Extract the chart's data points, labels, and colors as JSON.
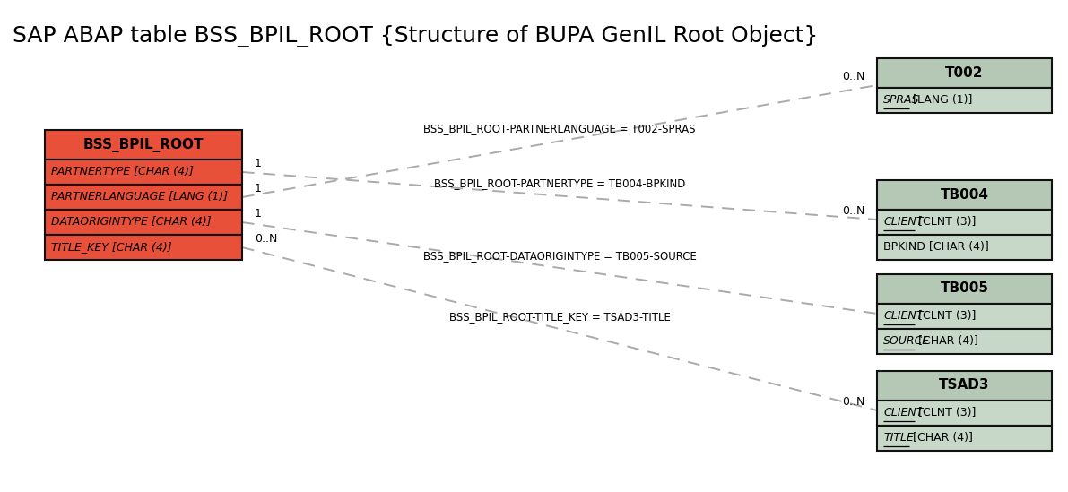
{
  "title": "SAP ABAP table BSS_BPIL_ROOT {Structure of BUPA GenIL Root Object}",
  "title_fontsize": 18,
  "bg_color": "#ffffff",
  "left_table": {
    "name": "BSS_BPIL_ROOT",
    "header_color": "#e8503a",
    "row_color": "#e8503a",
    "border_color": "#111111",
    "fields": [
      "PARTNERTYPE [CHAR (4)]",
      "PARTNERLANGUAGE [LANG (1)]",
      "DATAORIGINTYPE [CHAR (4)]",
      "TITLE_KEY [CHAR (4)]"
    ]
  },
  "right_tables": [
    {
      "name": "T002",
      "header_color": "#b5c8b5",
      "row_color": "#c8d8c8",
      "border_color": "#111111",
      "fields": [
        "SPRAS [LANG (1)]"
      ],
      "underlines": [
        true
      ]
    },
    {
      "name": "TB004",
      "header_color": "#b5c8b5",
      "row_color": "#c8d8c8",
      "border_color": "#111111",
      "fields": [
        "CLIENT [CLNT (3)]",
        "BPKIND [CHAR (4)]"
      ],
      "underlines": [
        true,
        false
      ]
    },
    {
      "name": "TB005",
      "header_color": "#b5c8b5",
      "row_color": "#c8d8c8",
      "border_color": "#111111",
      "fields": [
        "CLIENT [CLNT (3)]",
        "SOURCE [CHAR (4)]"
      ],
      "underlines": [
        true,
        true
      ]
    },
    {
      "name": "TSAD3",
      "header_color": "#b5c8b5",
      "row_color": "#c8d8c8",
      "border_color": "#111111",
      "fields": [
        "CLIENT [CLNT (3)]",
        "TITLE [CHAR (4)]"
      ],
      "underlines": [
        true,
        true
      ]
    }
  ],
  "connections": [
    {
      "label": "BSS_BPIL_ROOT-PARTNERLANGUAGE = T002-SPRAS",
      "from_field_idx": 1,
      "to_table_idx": 0,
      "left_card": "",
      "right_card": "0..N"
    },
    {
      "label": "BSS_BPIL_ROOT-PARTNERTYPE = TB004-BPKIND",
      "from_field_idx": 0,
      "to_table_idx": 1,
      "left_card": "1",
      "right_card": "0..N"
    },
    {
      "label": "BSS_BPIL_ROOT-DATAORIGINTYPE = TB005-SOURCE",
      "from_field_idx": 2,
      "to_table_idx": 2,
      "left_card": "1",
      "right_card": ""
    },
    {
      "label": "BSS_BPIL_ROOT-TITLE_KEY = TSAD3-TITLE",
      "from_field_idx": 3,
      "to_table_idx": 3,
      "left_card": "0..N",
      "right_card": "0..N"
    }
  ],
  "conn3_extra_card": "1"
}
